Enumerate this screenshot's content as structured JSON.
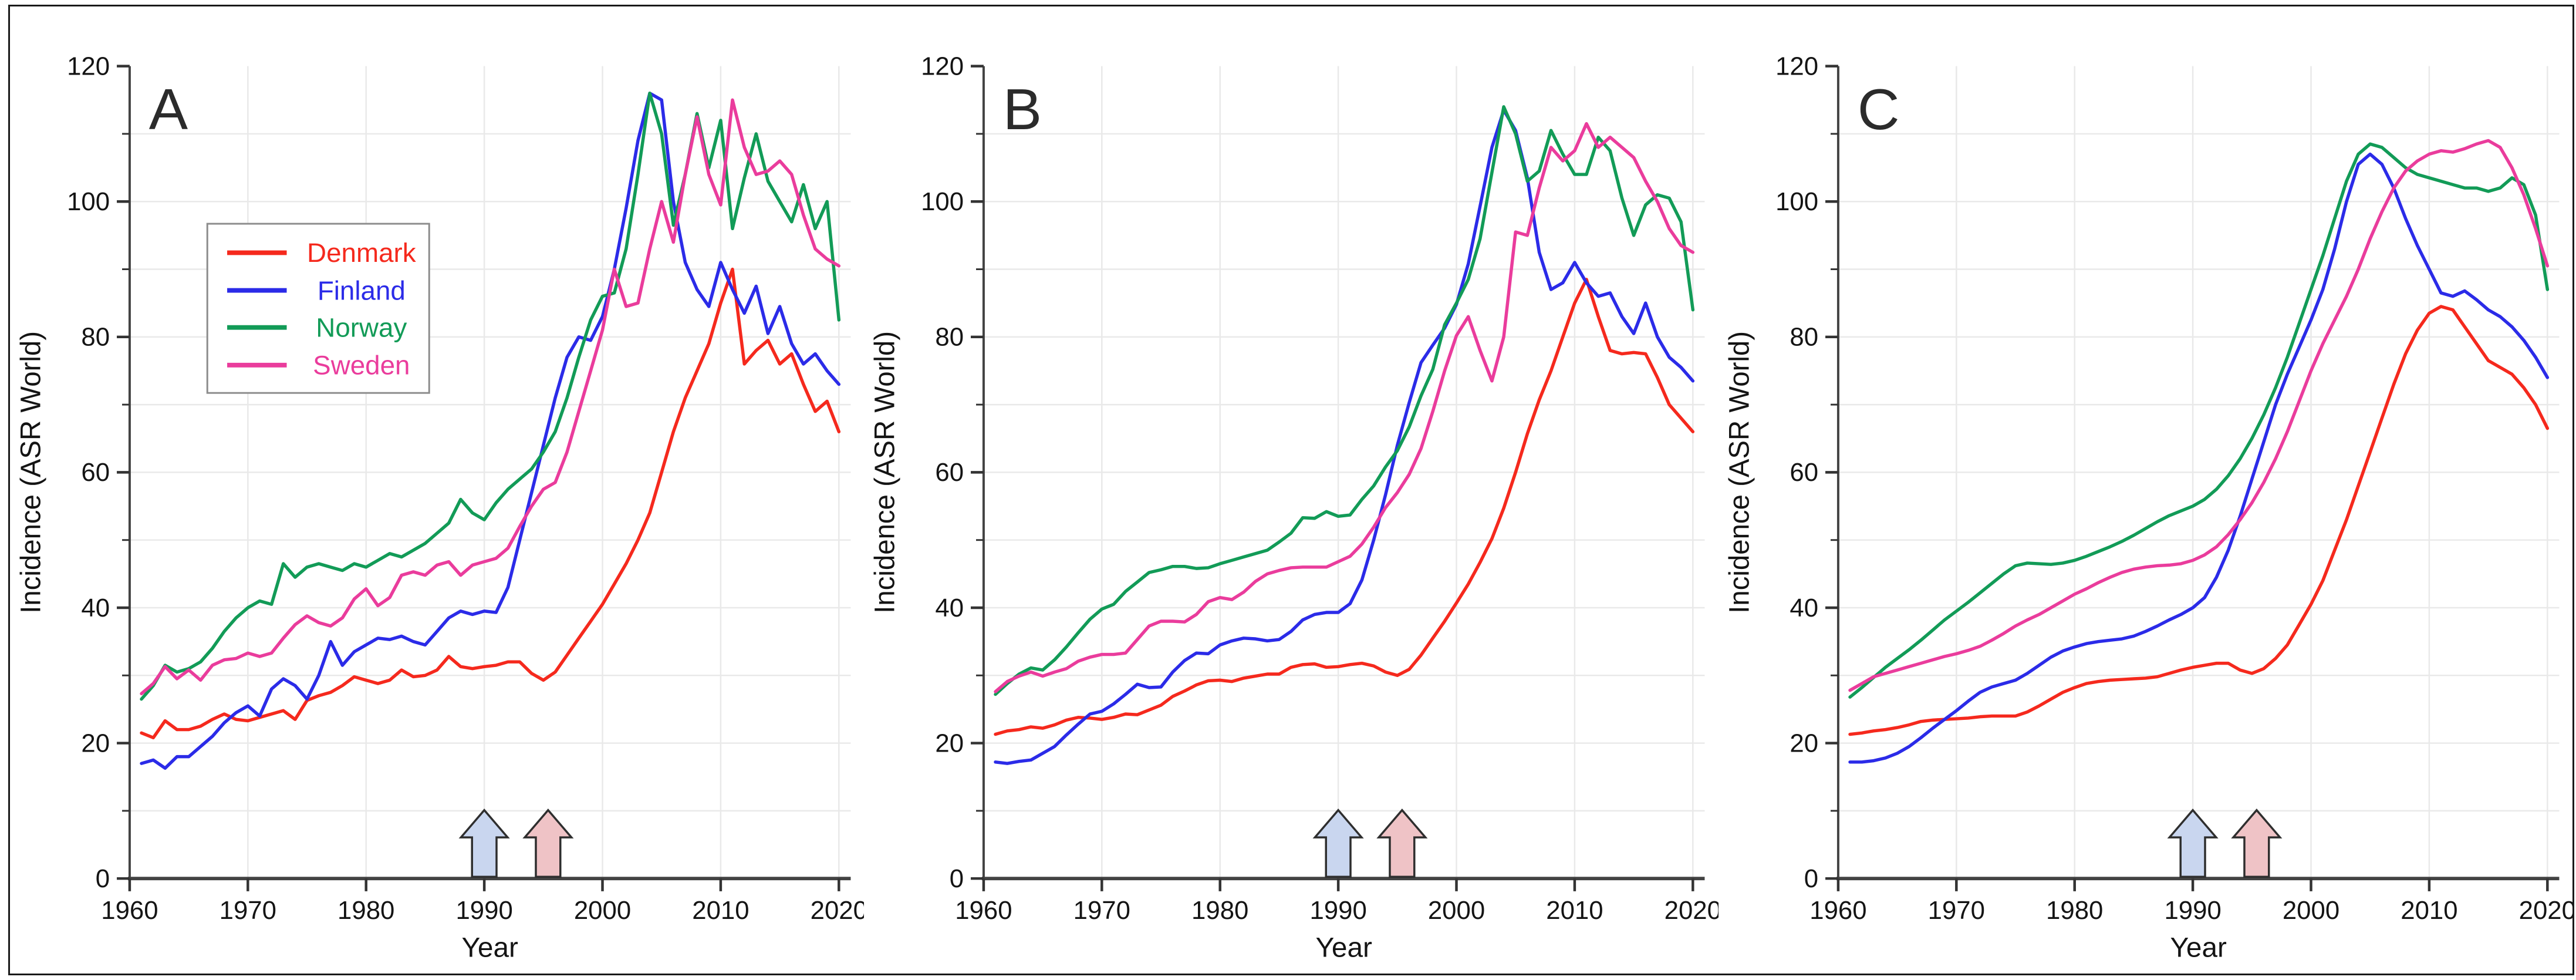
{
  "figure": {
    "background": "#ffffff",
    "border_color": "#1a1a1a"
  },
  "annotations": {
    "arrows": [
      {
        "x": 1990,
        "fill": "#c9d6ef",
        "outline": "#2e2e2e"
      },
      {
        "x": 1995.4,
        "fill": "#efc3c6",
        "outline": "#2e2e2e"
      }
    ]
  },
  "chart_data": [
    {
      "type": "line",
      "panel_label": "A",
      "xlabel": "Year",
      "ylabel": "Incidence (ASR World)",
      "xlim": [
        1960,
        2021
      ],
      "ylim": [
        0,
        120
      ],
      "x_ticks": [
        1960,
        1970,
        1980,
        1990,
        2000,
        2010,
        2020
      ],
      "y_ticks": [
        0,
        20,
        40,
        60,
        80,
        100,
        120
      ],
      "y_minor_ticks": [
        10,
        30,
        50,
        70,
        90,
        110
      ],
      "grid": true,
      "legend_position": "upper left",
      "x_start_year": 1961,
      "series": [
        {
          "name": "Denmark",
          "color": "#f5291d",
          "values": [
            21.5,
            20.8,
            23.3,
            22.0,
            22.0,
            22.5,
            23.5,
            24.3,
            23.5,
            23.3,
            23.8,
            24.3,
            24.8,
            23.5,
            26.3,
            27.0,
            27.5,
            28.5,
            29.8,
            29.3,
            28.8,
            29.3,
            30.8,
            29.8,
            30.0,
            30.8,
            32.8,
            31.3,
            31.0,
            31.3,
            31.5,
            32.0,
            32.0,
            30.3,
            29.3,
            30.5,
            33.0,
            35.5,
            38.0,
            40.5,
            43.5,
            46.5,
            50.0,
            54.0,
            60.0,
            66.0,
            71.0,
            75.0,
            79.0,
            85.0,
            90.0,
            76.0,
            78.0,
            79.5,
            76.0,
            77.5,
            73.0,
            69.0,
            70.5,
            66.0
          ]
        },
        {
          "name": "Finland",
          "color": "#2b2be8",
          "values": [
            17.0,
            17.5,
            16.3,
            18.0,
            18.0,
            19.5,
            21.0,
            23.0,
            24.5,
            25.5,
            24.0,
            28.0,
            29.5,
            28.5,
            26.5,
            30.0,
            35.0,
            31.5,
            33.5,
            34.5,
            35.5,
            35.3,
            35.8,
            35.0,
            34.5,
            36.5,
            38.5,
            39.5,
            39.0,
            39.5,
            39.3,
            43.0,
            50.0,
            57.0,
            64.0,
            71.0,
            77.0,
            80.0,
            79.5,
            83.0,
            90.0,
            99.0,
            109.0,
            116.0,
            115.0,
            100.0,
            91.0,
            87.0,
            84.5,
            91.0,
            87.0,
            83.5,
            87.5,
            80.5,
            84.5,
            79.0,
            76.0,
            77.5,
            75.0,
            73.0
          ]
        },
        {
          "name": "Norway",
          "color": "#129b57",
          "values": [
            26.5,
            28.5,
            31.5,
            30.5,
            31.0,
            32.0,
            34.0,
            36.5,
            38.5,
            40.0,
            41.0,
            40.5,
            46.5,
            44.5,
            46.0,
            46.5,
            46.0,
            45.5,
            46.5,
            46.0,
            47.0,
            48.0,
            47.5,
            48.5,
            49.5,
            51.0,
            52.5,
            56.0,
            54.0,
            53.0,
            55.5,
            57.5,
            59.0,
            60.5,
            63.0,
            66.0,
            71.0,
            77.0,
            82.5,
            86.0,
            86.5,
            93.0,
            104.0,
            116.0,
            110.0,
            96.5,
            104.0,
            113.0,
            105.0,
            112.0,
            96.0,
            103.5,
            110.0,
            103.0,
            100.0,
            97.0,
            102.5,
            96.0,
            100.0,
            82.5
          ]
        },
        {
          "name": "Sweden",
          "color": "#ea3c9c",
          "values": [
            27.3,
            28.8,
            31.3,
            29.5,
            30.8,
            29.3,
            31.5,
            32.3,
            32.5,
            33.3,
            32.8,
            33.3,
            35.5,
            37.5,
            38.8,
            37.8,
            37.3,
            38.5,
            41.3,
            42.8,
            40.3,
            41.5,
            44.8,
            45.3,
            44.8,
            46.3,
            46.8,
            44.8,
            46.3,
            46.8,
            47.3,
            48.8,
            52.0,
            55.0,
            57.5,
            58.5,
            63.0,
            69.0,
            75.0,
            81.0,
            90.0,
            84.5,
            85.0,
            93.0,
            100.0,
            94.0,
            104.0,
            112.5,
            104.0,
            99.5,
            115.0,
            108.0,
            104.0,
            104.5,
            106.0,
            104.0,
            98.0,
            93.0,
            91.5,
            90.5
          ]
        }
      ]
    },
    {
      "type": "line",
      "panel_label": "B",
      "xlabel": "Year",
      "ylabel": "Incidence (ASR World)",
      "xlim": [
        1960,
        2021
      ],
      "ylim": [
        0,
        120
      ],
      "x_ticks": [
        1960,
        1970,
        1980,
        1990,
        2000,
        2010,
        2020
      ],
      "y_ticks": [
        0,
        20,
        40,
        60,
        80,
        100,
        120
      ],
      "y_minor_ticks": [
        10,
        30,
        50,
        70,
        90,
        110
      ],
      "grid": true,
      "legend_position": null,
      "x_start_year": 1961,
      "series": [
        {
          "name": "Denmark",
          "color": "#f5291d",
          "values": [
            21.3,
            21.8,
            22.0,
            22.4,
            22.2,
            22.7,
            23.4,
            23.8,
            23.7,
            23.5,
            23.8,
            24.3,
            24.2,
            24.9,
            25.6,
            26.9,
            27.7,
            28.6,
            29.2,
            29.3,
            29.1,
            29.6,
            29.9,
            30.2,
            30.2,
            31.2,
            31.6,
            31.7,
            31.2,
            31.3,
            31.6,
            31.8,
            31.4,
            30.5,
            30.0,
            30.9,
            33.0,
            35.5,
            38.0,
            40.7,
            43.5,
            46.7,
            50.2,
            54.7,
            60.0,
            65.7,
            70.7,
            75.0,
            80.0,
            85.0,
            88.5,
            83.0,
            78.0,
            77.5,
            77.7,
            77.5,
            74.0,
            70.0,
            68.0,
            66.0
          ]
        },
        {
          "name": "Finland",
          "color": "#2b2be8",
          "values": [
            17.2,
            17.0,
            17.3,
            17.5,
            18.5,
            19.5,
            21.2,
            22.8,
            24.3,
            24.7,
            25.8,
            27.2,
            28.7,
            28.2,
            28.3,
            30.5,
            32.2,
            33.3,
            33.2,
            34.5,
            35.1,
            35.5,
            35.4,
            35.1,
            35.3,
            36.5,
            38.2,
            39.0,
            39.3,
            39.3,
            40.6,
            44.1,
            50.0,
            56.7,
            64.0,
            70.3,
            76.2,
            78.8,
            81.3,
            84.8,
            90.8,
            99.3,
            108.0,
            113.5,
            110.5,
            103.5,
            92.5,
            87.0,
            88.0,
            91.0,
            88.0,
            86.0,
            86.5,
            83.0,
            80.5,
            85.0,
            80.0,
            77.0,
            75.5,
            73.5
          ]
        },
        {
          "name": "Norway",
          "color": "#129b57",
          "values": [
            27.2,
            28.8,
            30.2,
            31.1,
            30.8,
            32.3,
            34.2,
            36.3,
            38.3,
            39.8,
            40.5,
            42.4,
            43.8,
            45.2,
            45.6,
            46.1,
            46.1,
            45.8,
            45.9,
            46.5,
            47.0,
            47.5,
            48.0,
            48.5,
            49.7,
            51.0,
            53.3,
            53.2,
            54.2,
            53.5,
            53.7,
            56.0,
            58.0,
            60.8,
            63.2,
            66.7,
            71.3,
            75.2,
            81.8,
            85.0,
            88.5,
            94.5,
            104.3,
            114.0,
            110.0,
            103.0,
            104.5,
            110.5,
            107.0,
            104.0,
            104.0,
            109.5,
            107.5,
            100.5,
            95.0,
            99.5,
            101.0,
            100.5,
            97.0,
            84.0
          ]
        },
        {
          "name": "Sweden",
          "color": "#ea3c9c",
          "values": [
            27.6,
            29.1,
            29.9,
            30.5,
            29.9,
            30.5,
            31.0,
            32.1,
            32.7,
            33.1,
            33.1,
            33.3,
            35.3,
            37.3,
            38.0,
            38.0,
            37.9,
            39.0,
            40.9,
            41.5,
            41.2,
            42.3,
            43.9,
            45.0,
            45.5,
            45.9,
            46.0,
            46.0,
            46.0,
            46.8,
            47.6,
            49.4,
            51.9,
            54.8,
            57.0,
            59.7,
            63.5,
            69.0,
            75.0,
            80.2,
            83.0,
            78.0,
            73.5,
            80.0,
            95.5,
            95.0,
            102.0,
            108.0,
            106.0,
            107.5,
            111.5,
            108.0,
            109.5,
            108.0,
            106.5,
            103.0,
            100.0,
            96.0,
            93.5,
            92.5
          ]
        }
      ]
    },
    {
      "type": "line",
      "panel_label": "C",
      "xlabel": "Year",
      "ylabel": "Incidence (ASR World)",
      "xlim": [
        1960,
        2021
      ],
      "ylim": [
        0,
        120
      ],
      "x_ticks": [
        1960,
        1970,
        1980,
        1990,
        2000,
        2010,
        2020
      ],
      "y_ticks": [
        0,
        20,
        40,
        60,
        80,
        100,
        120
      ],
      "y_minor_ticks": [
        10,
        30,
        50,
        70,
        90,
        110
      ],
      "grid": true,
      "legend_position": null,
      "x_start_year": 1961,
      "series": [
        {
          "name": "Denmark",
          "color": "#f5291d",
          "values": [
            21.3,
            21.5,
            21.8,
            22.0,
            22.3,
            22.7,
            23.2,
            23.4,
            23.5,
            23.6,
            23.7,
            23.9,
            24.0,
            24.0,
            24.0,
            24.6,
            25.5,
            26.5,
            27.5,
            28.2,
            28.8,
            29.1,
            29.3,
            29.4,
            29.5,
            29.6,
            29.8,
            30.3,
            30.8,
            31.2,
            31.5,
            31.8,
            31.8,
            30.8,
            30.3,
            31.0,
            32.5,
            34.5,
            37.5,
            40.5,
            44.0,
            48.5,
            53.0,
            58.0,
            63.0,
            68.0,
            73.0,
            77.5,
            81.0,
            83.5,
            84.5,
            84.0,
            81.5,
            79.0,
            76.5,
            75.5,
            74.5,
            72.5,
            70.0,
            66.5
          ]
        },
        {
          "name": "Finland",
          "color": "#2b2be8",
          "values": [
            17.2,
            17.2,
            17.4,
            17.8,
            18.5,
            19.5,
            20.8,
            22.2,
            23.5,
            24.8,
            26.2,
            27.5,
            28.3,
            28.8,
            29.3,
            30.3,
            31.5,
            32.7,
            33.6,
            34.2,
            34.7,
            35.0,
            35.2,
            35.4,
            35.8,
            36.5,
            37.3,
            38.2,
            39.0,
            40.0,
            41.5,
            44.5,
            48.5,
            53.5,
            59.0,
            64.5,
            70.0,
            74.5,
            78.5,
            82.5,
            87.0,
            93.0,
            100.0,
            105.5,
            107.0,
            105.5,
            102.0,
            97.5,
            93.5,
            90.0,
            86.5,
            86.0,
            86.8,
            85.5,
            84.0,
            83.0,
            81.5,
            79.5,
            77.0,
            74.0
          ]
        },
        {
          "name": "Norway",
          "color": "#129b57",
          "values": [
            26.8,
            28.2,
            29.7,
            31.2,
            32.5,
            33.8,
            35.2,
            36.7,
            38.2,
            39.5,
            40.8,
            42.2,
            43.6,
            45.0,
            46.2,
            46.6,
            46.5,
            46.4,
            46.6,
            47.0,
            47.6,
            48.3,
            49.0,
            49.8,
            50.7,
            51.7,
            52.7,
            53.6,
            54.3,
            55.0,
            56.0,
            57.5,
            59.5,
            62.0,
            65.0,
            68.5,
            72.5,
            77.0,
            82.0,
            87.0,
            92.0,
            97.5,
            103.0,
            107.0,
            108.5,
            108.0,
            106.5,
            105.0,
            104.0,
            103.5,
            103.0,
            102.5,
            102.0,
            102.0,
            101.5,
            102.0,
            103.5,
            102.5,
            98.0,
            87.0
          ]
        },
        {
          "name": "Sweden",
          "color": "#ea3c9c",
          "values": [
            27.8,
            28.8,
            29.8,
            30.3,
            30.8,
            31.3,
            31.8,
            32.3,
            32.8,
            33.2,
            33.7,
            34.3,
            35.2,
            36.2,
            37.3,
            38.2,
            39.0,
            40.0,
            41.0,
            42.0,
            42.8,
            43.7,
            44.5,
            45.2,
            45.7,
            46.0,
            46.2,
            46.3,
            46.5,
            47.0,
            47.8,
            49.0,
            50.8,
            53.0,
            55.5,
            58.5,
            62.0,
            66.0,
            70.5,
            75.0,
            79.0,
            82.5,
            86.0,
            90.0,
            94.5,
            98.5,
            102.0,
            104.5,
            106.0,
            107.0,
            107.5,
            107.3,
            107.8,
            108.5,
            109.0,
            108.0,
            105.0,
            101.0,
            96.0,
            90.5
          ]
        }
      ]
    }
  ]
}
